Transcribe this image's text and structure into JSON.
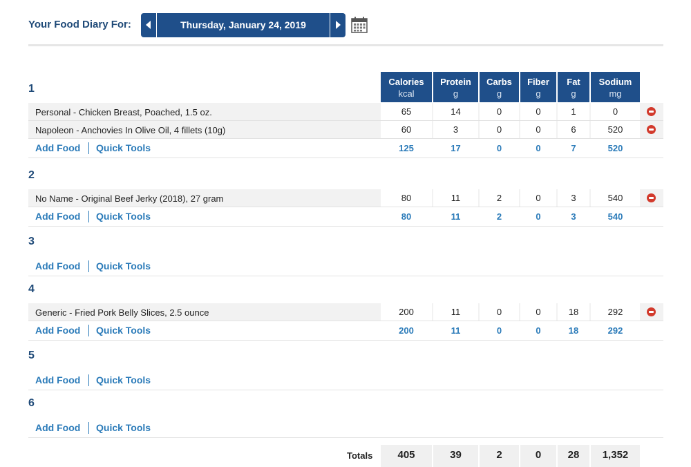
{
  "header": {
    "title": "Your Food Diary For:",
    "date": "Thursday, January 24, 2019",
    "calendar_icon": "calendar-icon",
    "prev_icon": "caret-left-icon",
    "next_icon": "caret-right-icon"
  },
  "columns": [
    {
      "label": "Calories",
      "unit": "kcal"
    },
    {
      "label": "Protein",
      "unit": "g"
    },
    {
      "label": "Carbs",
      "unit": "g"
    },
    {
      "label": "Fiber",
      "unit": "g"
    },
    {
      "label": "Fat",
      "unit": "g"
    },
    {
      "label": "Sodium",
      "unit": "mg"
    }
  ],
  "actions": {
    "add_food": "Add Food",
    "quick_tools": "Quick Tools"
  },
  "meals": [
    {
      "name": "1",
      "foods": [
        {
          "name": "Personal - Chicken Breast, Poached, 1.5 oz.",
          "values": [
            "65",
            "14",
            "0",
            "0",
            "1",
            "0"
          ]
        },
        {
          "name": "Napoleon - Anchovies In Olive Oil, 4 fillets (10g)",
          "values": [
            "60",
            "3",
            "0",
            "0",
            "6",
            "520"
          ]
        }
      ],
      "totals": [
        "125",
        "17",
        "0",
        "0",
        "7",
        "520"
      ]
    },
    {
      "name": "2",
      "foods": [
        {
          "name": "No Name - Original Beef Jerky (2018), 27 gram",
          "values": [
            "80",
            "11",
            "2",
            "0",
            "3",
            "540"
          ]
        }
      ],
      "totals": [
        "80",
        "11",
        "2",
        "0",
        "3",
        "540"
      ]
    },
    {
      "name": "3",
      "foods": [],
      "totals": []
    },
    {
      "name": "4",
      "foods": [
        {
          "name": "Generic - Fried Pork Belly Slices, 2.5 ounce",
          "values": [
            "200",
            "11",
            "0",
            "0",
            "18",
            "292"
          ]
        }
      ],
      "totals": [
        "200",
        "11",
        "0",
        "0",
        "18",
        "292"
      ]
    },
    {
      "name": "5",
      "foods": [],
      "totals": []
    },
    {
      "name": "6",
      "foods": [],
      "totals": []
    }
  ],
  "grand_totals": {
    "label": "Totals",
    "values": [
      "405",
      "39",
      "2",
      "0",
      "28",
      "1,352"
    ]
  },
  "colors": {
    "brand": "#1f4f8a",
    "link": "#2b7bb9",
    "remove": "#d23a2c"
  }
}
